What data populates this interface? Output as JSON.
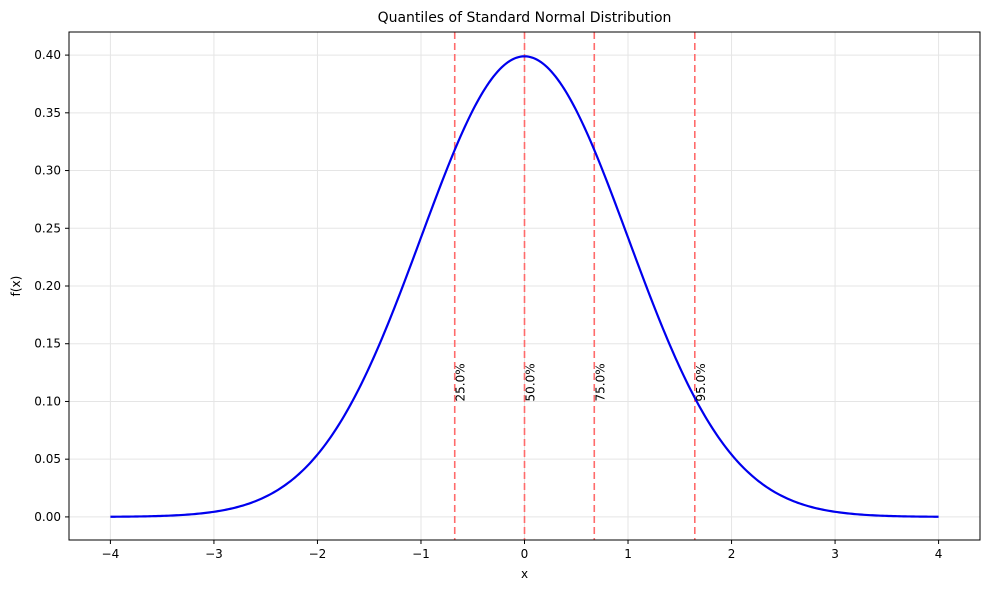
{
  "chart_data": {
    "type": "line",
    "title": "Quantiles of Standard Normal Distribution",
    "xlabel": "x",
    "ylabel": "f(x)",
    "xlim": [
      -4.4,
      4.4
    ],
    "ylim": [
      -0.02,
      0.42
    ],
    "x_ticks": [
      -4,
      -3,
      -2,
      -1,
      0,
      1,
      2,
      3,
      4
    ],
    "x_tick_labels": [
      "−4",
      "−3",
      "−2",
      "−1",
      "0",
      "1",
      "2",
      "3",
      "4"
    ],
    "y_ticks": [
      0.0,
      0.05,
      0.1,
      0.15,
      0.2,
      0.25,
      0.3,
      0.35,
      0.4
    ],
    "y_tick_labels": [
      "0.00",
      "0.05",
      "0.10",
      "0.15",
      "0.20",
      "0.25",
      "0.30",
      "0.35",
      "0.40"
    ],
    "grid": true,
    "series": [
      {
        "color": "#0000ee",
        "function": "standard normal pdf",
        "x_range": [
          -4,
          4
        ]
      }
    ],
    "quantiles": [
      {
        "label": "25.0%",
        "x": -0.674,
        "label_y": 0.1
      },
      {
        "label": "50.0%",
        "x": 0.0,
        "label_y": 0.1
      },
      {
        "label": "75.0%",
        "x": 0.674,
        "label_y": 0.1
      },
      {
        "label": "95.0%",
        "x": 1.645,
        "label_y": 0.1
      }
    ],
    "quantile_line_color": "#ff6b6b",
    "frame_color": "#000000",
    "grid_color": "#e5e5e5"
  }
}
